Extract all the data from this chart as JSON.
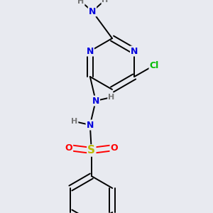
{
  "bg_color": "#e8eaf0",
  "atom_colors": {
    "N": "#0000dd",
    "Cl": "#00bb00",
    "S": "#bbbb00",
    "O": "#ff0000",
    "F": "#ee00ee",
    "C": "#000000",
    "H": "#777777"
  },
  "bond_color": "#000000",
  "bond_lw": 1.4,
  "font_size": 9
}
